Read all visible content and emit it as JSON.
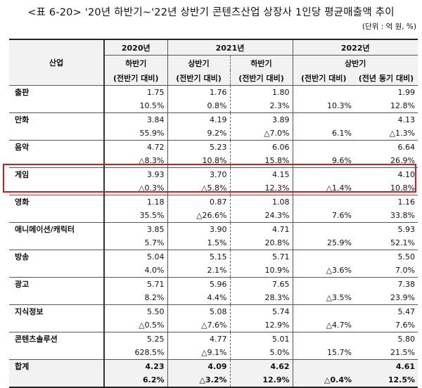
{
  "title": "<표 6-20> '20년 하반기~'22년 상반기 콘텐츠산업 상장사 1인당 평균매출액 추이",
  "unit": "(단위 : 억 원, %)",
  "header": {
    "industry": "산업",
    "y2020": "2020년",
    "y2021": "2021년",
    "y2022": "2022년",
    "h2": "하반기",
    "h1": "상반기",
    "vs_prev_half": "(전반기 대비)",
    "vs_prev_year": "(전년 동기 대비)"
  },
  "rows": [
    {
      "name": "출판",
      "v2020h2": "1.75",
      "p2020h2": "10.5%",
      "v2021h1": "1.76",
      "p2021h1": "0.8%",
      "v2021h2": "1.80",
      "p2021h2": "2.3%",
      "p2022h1_half": "10.3%",
      "v2022h1": "1.99",
      "p2022h1_year": "12.8%"
    },
    {
      "name": "만화",
      "v2020h2": "3.84",
      "p2020h2": "55.9%",
      "v2021h1": "4.19",
      "p2021h1": "9.2%",
      "v2021h2": "3.89",
      "p2021h2": "△7.0%",
      "p2022h1_half": "6.1%",
      "v2022h1": "4.13",
      "p2022h1_year": "△1.3%"
    },
    {
      "name": "음악",
      "v2020h2": "4.72",
      "p2020h2": "△8.3%",
      "v2021h1": "5.23",
      "p2021h1": "10.8%",
      "v2021h2": "6.06",
      "p2021h2": "15.8%",
      "p2022h1_half": "9.6%",
      "v2022h1": "6.64",
      "p2022h1_year": "26.9%"
    },
    {
      "name": "게임",
      "v2020h2": "3.93",
      "p2020h2": "△0.3%",
      "v2021h1": "3.70",
      "p2021h1": "△5.8%",
      "v2021h2": "4.15",
      "p2021h2": "12.3%",
      "p2022h1_half": "△1.4%",
      "v2022h1": "4.10",
      "p2022h1_year": "10.8%"
    },
    {
      "name": "영화",
      "v2020h2": "1.18",
      "p2020h2": "35.5%",
      "v2021h1": "0.87",
      "p2021h1": "△26.6%",
      "v2021h2": "1.08",
      "p2021h2": "24.3%",
      "p2022h1_half": "7.6%",
      "v2022h1": "1.16",
      "p2022h1_year": "33.8%"
    },
    {
      "name": "애니메이션/캐릭터",
      "v2020h2": "3.85",
      "p2020h2": "5.7%",
      "v2021h1": "3.90",
      "p2021h1": "1.5%",
      "v2021h2": "4.71",
      "p2021h2": "20.8%",
      "p2022h1_half": "25.9%",
      "v2022h1": "5.93",
      "p2022h1_year": "52.1%"
    },
    {
      "name": "방송",
      "v2020h2": "5.04",
      "p2020h2": "4.0%",
      "v2021h1": "5.15",
      "p2021h1": "2.1%",
      "v2021h2": "5.71",
      "p2021h2": "10.9%",
      "p2022h1_half": "△3.6%",
      "v2022h1": "5.50",
      "p2022h1_year": "7.0%"
    },
    {
      "name": "광고",
      "v2020h2": "5.71",
      "p2020h2": "8.2%",
      "v2021h1": "5.96",
      "p2021h1": "4.4%",
      "v2021h2": "7.65",
      "p2021h2": "28.3%",
      "p2022h1_half": "△3.5%",
      "v2022h1": "7.38",
      "p2022h1_year": "23.9%"
    },
    {
      "name": "지식정보",
      "v2020h2": "5.50",
      "p2020h2": "△0.5%",
      "v2021h1": "5.08",
      "p2021h1": "△7.6%",
      "v2021h2": "5.74",
      "p2021h2": "12.9%",
      "p2022h1_half": "△4.7%",
      "v2022h1": "5.47",
      "p2022h1_year": "7.6%"
    },
    {
      "name": "콘텐츠솔루션",
      "v2020h2": "5.25",
      "p2020h2": "628.5%",
      "v2021h1": "4.77",
      "p2021h1": "△9.1%",
      "v2021h2": "5.01",
      "p2021h2": "5.0%",
      "p2022h1_half": "15.7%",
      "v2022h1": "5.80",
      "p2022h1_year": "21.5%"
    },
    {
      "name": "합계",
      "v2020h2": "4.23",
      "p2020h2": "6.2%",
      "v2021h1": "4.09",
      "p2021h1": "△3.2%",
      "v2021h2": "4.62",
      "p2021h2": "12.9%",
      "p2022h1_half": "△0.4%",
      "v2022h1": "4.61",
      "p2022h1_year": "12.5%"
    }
  ],
  "highlight_color": "#e0161b"
}
